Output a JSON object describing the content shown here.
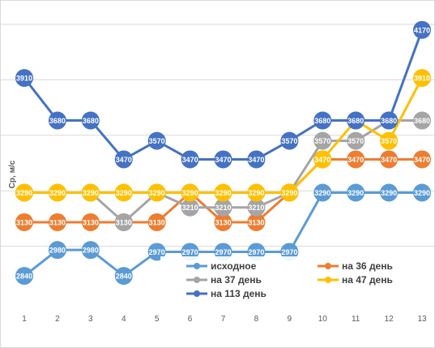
{
  "chart_data": {
    "type": "line",
    "title": "",
    "xlabel": "",
    "ylabel": "Ср, м/с",
    "ylim": [
      2700,
      4200
    ],
    "x": [
      "1",
      "2",
      "3",
      "4",
      "5",
      "6",
      "7",
      "8",
      "9",
      "10",
      "11",
      "12",
      "13"
    ],
    "grid": true,
    "legend_position": "bottom-right",
    "series": [
      {
        "name": "исходное",
        "color": "#5b9bd5",
        "values": [
          2840,
          2980,
          2980,
          2840,
          2970,
          2970,
          2970,
          2970,
          2970,
          3290,
          3290,
          3290,
          3290
        ],
        "labels": [
          "2840",
          "2980",
          "2980",
          "2840",
          "2970",
          "2970",
          "2970",
          "2970",
          "2970",
          "3290",
          "3290",
          "3290",
          "3290"
        ]
      },
      {
        "name": "на 36 день",
        "color": "#ed7d31",
        "values": [
          3130,
          3130,
          3130,
          3130,
          3130,
          3290,
          3130,
          3130,
          3290,
          3470,
          3470,
          3470,
          3470
        ],
        "labels": [
          "3130",
          "3130",
          "3130",
          "3130",
          "3130",
          "3290",
          "3130",
          "3130",
          "3290",
          "3470",
          "3470",
          "3470",
          "3470"
        ]
      },
      {
        "name": "на 37 день",
        "color": "#a5a5a5",
        "values": [
          3290,
          3290,
          3290,
          3130,
          3290,
          3210,
          3210,
          3210,
          3290,
          3570,
          3570,
          3680,
          3680
        ],
        "labels": [
          "3290",
          "3290",
          "3290",
          "3130",
          "3290",
          "3210",
          "3210",
          "3210",
          "3290",
          "3570",
          "3570",
          "3680",
          "3680"
        ]
      },
      {
        "name": "на 47 день",
        "color": "#ffc000",
        "values": [
          3290,
          3290,
          3290,
          3290,
          3290,
          3290,
          3290,
          3290,
          3290,
          3470,
          3680,
          3570,
          3910
        ],
        "labels": [
          "3290",
          "3290",
          "3290",
          "3290",
          "3290",
          "3290",
          "3290",
          "3290",
          "3290",
          "3470",
          "3680",
          "3570",
          "3910"
        ]
      },
      {
        "name": "на 113 день",
        "color": "#4472c4",
        "values": [
          3910,
          3680,
          3680,
          3470,
          3570,
          3470,
          3470,
          3470,
          3570,
          3680,
          3680,
          3680,
          4170
        ],
        "labels": [
          "3910",
          "3680",
          "3680",
          "3470",
          "3570",
          "3470",
          "3470",
          "3470",
          "3570",
          "3680",
          "3680",
          "3680",
          "4170"
        ]
      }
    ]
  }
}
